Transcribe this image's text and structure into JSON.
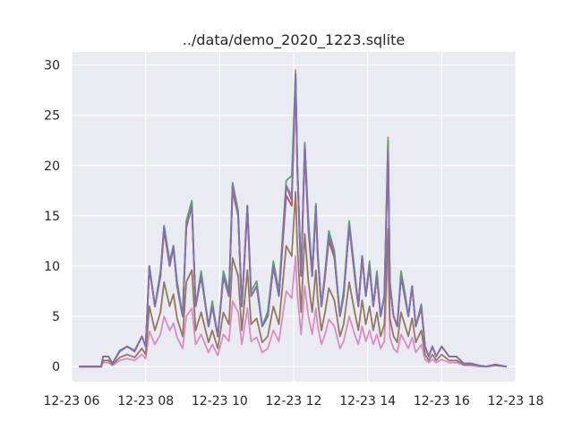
{
  "chart_data": {
    "type": "line",
    "title": "../data/demo_2020_1223.sqlite",
    "xlabel": "",
    "ylabel": "",
    "x_axis": {
      "kind": "time",
      "range_hours": [
        6.0,
        18.0
      ],
      "ticks": [
        {
          "hour": 6,
          "label": "12-23 06"
        },
        {
          "hour": 8,
          "label": "12-23 08"
        },
        {
          "hour": 10,
          "label": "12-23 10"
        },
        {
          "hour": 12,
          "label": "12-23 12"
        },
        {
          "hour": 14,
          "label": "12-23 14"
        },
        {
          "hour": 16,
          "label": "12-23 16"
        },
        {
          "hour": 18,
          "label": "12-23 18"
        }
      ]
    },
    "y_axis": {
      "range": [
        -1.5,
        31.3
      ],
      "ticks": [
        0,
        5,
        10,
        15,
        20,
        25,
        30
      ]
    },
    "grid": true,
    "background": "#eaeaf2",
    "envelope_hours": [
      6.2,
      6.8,
      6.85,
      7.0,
      7.1,
      7.3,
      7.5,
      7.7,
      7.9,
      8.0,
      8.1,
      8.25,
      8.4,
      8.5,
      8.65,
      8.75,
      8.85,
      9.0,
      9.1,
      9.25,
      9.35,
      9.5,
      9.7,
      9.8,
      9.95,
      10.1,
      10.25,
      10.35,
      10.5,
      10.6,
      10.75,
      10.85,
      11.0,
      11.15,
      11.3,
      11.45,
      11.6,
      11.8,
      11.95,
      12.05,
      12.1,
      12.2,
      12.3,
      12.4,
      12.5,
      12.6,
      12.65,
      12.75,
      12.85,
      12.95,
      13.1,
      13.25,
      13.35,
      13.5,
      13.65,
      13.75,
      13.85,
      13.95,
      14.05,
      14.15,
      14.25,
      14.35,
      14.45,
      14.55,
      14.6,
      14.7,
      14.8,
      14.9,
      15.0,
      15.1,
      15.2,
      15.3,
      15.45,
      15.55,
      15.65,
      15.75,
      15.85,
      16.0,
      16.2,
      16.4,
      16.6,
      16.8,
      17.0,
      17.2,
      17.45,
      17.75
    ],
    "series": [
      {
        "color": "#4c72b0",
        "values": [
          0,
          0,
          1,
          1,
          0.3,
          1.5,
          2,
          1.5,
          3,
          2,
          10,
          6,
          9,
          14,
          10,
          12,
          8,
          5,
          14,
          16,
          6,
          9,
          4,
          6,
          3,
          9,
          7,
          18,
          15,
          6,
          16,
          7,
          8,
          4,
          5,
          10,
          7,
          18,
          17,
          29,
          20,
          9,
          22,
          14,
          9,
          16,
          11,
          6,
          9,
          13,
          11,
          5,
          7,
          14,
          9,
          6,
          11,
          7,
          10,
          6,
          9,
          5,
          7,
          22,
          8,
          5,
          4,
          9,
          7,
          5,
          8,
          4,
          6,
          2,
          1,
          2,
          1,
          2,
          1,
          1,
          0.3,
          0.3,
          0.1,
          0,
          0.2,
          0
        ]
      },
      {
        "color": "#dd8452",
        "values": [
          0,
          0,
          1,
          1,
          0.3,
          1.5,
          2,
          1.5,
          3,
          2,
          10,
          6,
          9,
          14,
          10,
          12,
          8,
          5,
          14,
          16,
          6,
          9,
          4,
          6,
          3,
          9,
          7,
          18,
          15,
          6,
          16,
          7,
          8,
          4,
          5,
          10,
          7,
          18,
          17,
          29.5,
          20,
          9,
          22,
          14,
          9,
          16,
          11,
          6,
          9,
          13,
          11,
          5,
          7,
          14,
          9,
          6,
          11,
          7,
          10,
          6,
          9,
          5,
          7,
          22.8,
          8,
          5,
          4,
          9,
          7,
          5,
          8,
          4,
          6,
          2,
          1,
          2,
          1,
          2,
          1,
          1,
          0.3,
          0.3,
          0.1,
          0,
          0.2,
          0
        ]
      },
      {
        "color": "#55a868",
        "values": [
          0,
          0,
          1,
          1,
          0.3,
          1.6,
          2,
          1.6,
          3,
          2,
          10,
          6,
          9.5,
          14,
          10.5,
          12,
          8.5,
          5,
          14.5,
          16.5,
          6,
          9.5,
          4,
          6.5,
          3,
          9.5,
          7.5,
          18.3,
          15.5,
          6,
          16,
          7.5,
          8.5,
          4,
          5.5,
          10.5,
          7.5,
          18.5,
          19,
          29.2,
          20,
          9,
          22.3,
          14.5,
          9.5,
          16.2,
          11.5,
          6,
          9.5,
          13.5,
          11.5,
          5,
          7.5,
          14.5,
          9.5,
          6,
          11,
          7,
          10.5,
          6,
          9.5,
          5,
          7,
          22.5,
          8.5,
          5,
          4,
          9.5,
          7.5,
          5,
          8,
          4,
          6.2,
          2,
          1,
          2,
          1,
          2,
          1,
          1,
          0.3,
          0.3,
          0.1,
          0,
          0.2,
          0
        ]
      },
      {
        "color": "#c44e52",
        "values": [
          0,
          0,
          1,
          1,
          0.3,
          1.5,
          2,
          1.5,
          3,
          2,
          9.8,
          6,
          9,
          13.5,
          10,
          11.8,
          8,
          5,
          13.8,
          16,
          6,
          9,
          4,
          6,
          3,
          9,
          7,
          17.5,
          15,
          6,
          15.5,
          7,
          8,
          4,
          5,
          10,
          7,
          17,
          16,
          28.5,
          19.5,
          9,
          21.5,
          13.5,
          9,
          15.5,
          11,
          6,
          9,
          12.5,
          10.8,
          5,
          7,
          14,
          9,
          6,
          10.8,
          7,
          10,
          6,
          9,
          5,
          7,
          21.5,
          8,
          5,
          4,
          9,
          7,
          5,
          8,
          4,
          5.8,
          2,
          1,
          2,
          1,
          2,
          1,
          1,
          0.3,
          0.3,
          0.1,
          0,
          0.2,
          0
        ]
      },
      {
        "color": "#8172b3",
        "values": [
          0,
          0,
          1,
          1,
          0.3,
          1.5,
          2,
          1.5,
          3,
          2,
          10,
          6,
          9,
          14,
          10,
          12,
          8,
          5,
          14,
          16,
          6,
          9,
          4,
          6,
          3,
          9,
          7,
          18,
          15,
          6,
          16,
          7,
          8,
          4,
          5,
          10,
          7,
          18,
          16.5,
          29,
          20,
          9,
          22,
          14,
          9,
          16,
          11,
          6,
          9,
          13,
          11,
          5,
          7,
          14,
          9,
          6,
          11,
          7,
          10,
          6,
          9,
          5,
          7,
          21.5,
          8,
          5,
          4,
          9,
          7,
          5,
          8,
          4,
          6,
          2,
          1,
          2,
          1,
          2,
          1,
          1,
          0.3,
          0.3,
          0.1,
          0,
          0.2,
          0
        ]
      },
      {
        "color": "#937860",
        "values": [
          0,
          0,
          0.6,
          0.6,
          0.2,
          0.9,
          1.2,
          0.9,
          1.8,
          1.2,
          6,
          3.6,
          5.4,
          8.4,
          6,
          7.2,
          4.8,
          3,
          8.4,
          9.6,
          3.6,
          5.4,
          2.4,
          3.6,
          1.8,
          5.4,
          4.2,
          10.8,
          9,
          3.6,
          9.6,
          4.2,
          4.8,
          2.4,
          3,
          6,
          4.2,
          12,
          11,
          17.4,
          12,
          5.4,
          13.2,
          8.4,
          5.4,
          9.6,
          6.6,
          3.6,
          5.4,
          7.8,
          6.6,
          3,
          4.2,
          8.4,
          5.4,
          3.6,
          6.6,
          4.2,
          6,
          3.6,
          5.4,
          3,
          4.2,
          13.7,
          4.8,
          3,
          2.4,
          5.4,
          4.2,
          3,
          4.8,
          2.4,
          3.6,
          1.2,
          0.6,
          1.2,
          0.6,
          1.2,
          0.6,
          0.6,
          0.2,
          0.2,
          0.1,
          0,
          0.1,
          0
        ]
      },
      {
        "color": "#da8bc3",
        "values": [
          0,
          0,
          0.4,
          0.4,
          0.1,
          0.6,
          0.8,
          0.6,
          1.2,
          0.8,
          3.5,
          2.2,
          3.2,
          5,
          3.6,
          4.3,
          2.9,
          1.8,
          5,
          5.8,
          2.2,
          3.2,
          1.4,
          2.2,
          1.1,
          3.2,
          2.5,
          6.5,
          5.4,
          2.2,
          5.8,
          2.5,
          2.9,
          1.4,
          1.8,
          3.6,
          2.5,
          7.5,
          6.8,
          11,
          7.2,
          3.2,
          8,
          5,
          3.2,
          5.8,
          4,
          2.2,
          3.2,
          4.7,
          4,
          1.8,
          2.5,
          5,
          3.2,
          2.2,
          4,
          2.5,
          3.6,
          2.2,
          3.2,
          1.8,
          2.5,
          11.3,
          2.9,
          1.8,
          1.4,
          3.2,
          2.5,
          1.8,
          2.9,
          1.4,
          2.2,
          0.7,
          0.4,
          0.7,
          0.4,
          0.7,
          0.4,
          0.4,
          0.1,
          0.1,
          0,
          0,
          0.1,
          0
        ]
      }
    ]
  }
}
